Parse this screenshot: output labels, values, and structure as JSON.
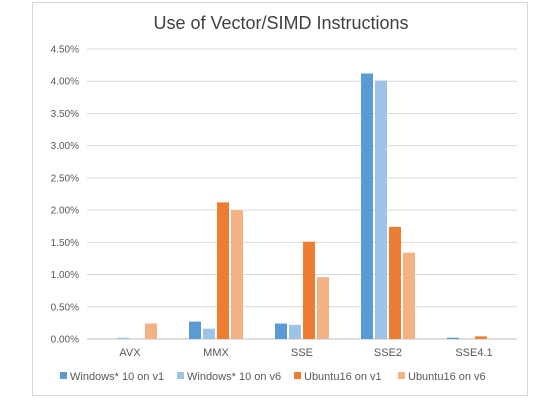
{
  "chart_data": {
    "type": "bar",
    "title": "Use of Vector/SIMD Instructions",
    "categories": [
      "AVX",
      "MMX",
      "SSE",
      "SSE2",
      "SSE4.1"
    ],
    "series": [
      {
        "name": "Windows* 10 on v1",
        "color": "#5b9bd5",
        "values": [
          0.0,
          0.27,
          0.24,
          4.12,
          0.02
        ]
      },
      {
        "name": "Windows* 10 on v6",
        "color": "#9dc3e6",
        "values": [
          0.02,
          0.16,
          0.22,
          4.01,
          0.0
        ]
      },
      {
        "name": "Ubuntu16 on v1",
        "color": "#ed7d31",
        "values": [
          0.0,
          2.12,
          1.51,
          1.74,
          0.04
        ]
      },
      {
        "name": "Ubuntu16 on v6",
        "color": "#f4b183",
        "values": [
          0.24,
          2.0,
          0.96,
          1.34,
          0.0
        ]
      }
    ],
    "yticks": [
      "0.00%",
      "0.50%",
      "1.00%",
      "1.50%",
      "2.00%",
      "2.50%",
      "3.00%",
      "3.50%",
      "4.00%",
      "4.50%"
    ],
    "ylim": [
      0,
      4.5
    ],
    "grid": true,
    "legend_position": "bottom"
  }
}
